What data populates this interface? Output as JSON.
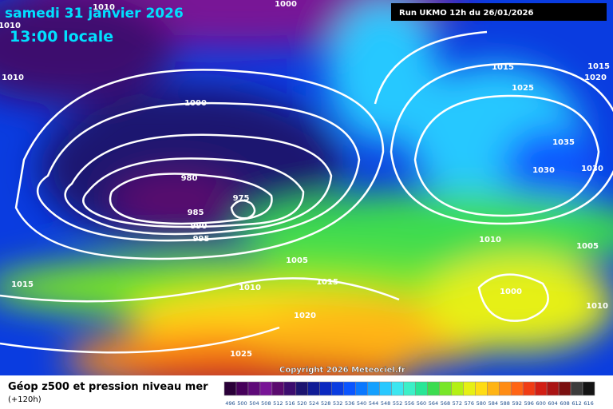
{
  "header": {
    "date": "samedi 31 janvier 2026",
    "time": "13:00 locale",
    "run": "Run UKMO 12h du 26/01/2026"
  },
  "isobar_labels": [
    "1010",
    "1000",
    "1010",
    "1010",
    "1000",
    "980",
    "975",
    "985",
    "990",
    "995",
    "1005",
    "1015",
    "1010",
    "1015",
    "1020",
    "1025",
    "1015",
    "1025",
    "1015",
    "1020",
    "1035",
    "1030",
    "1030",
    "1010",
    "1005",
    "1000",
    "1010"
  ],
  "copyright": "Copyright 2026 Meteociel.fr",
  "footer": {
    "title": "Géop z500 et pression niveau mer",
    "lead": "(+120h)"
  },
  "scale": {
    "labels": [
      "496",
      "500",
      "504",
      "508",
      "512",
      "516",
      "520",
      "524",
      "528",
      "532",
      "536",
      "540",
      "544",
      "548",
      "552",
      "556",
      "560",
      "564",
      "568",
      "572",
      "576",
      "580",
      "584",
      "588",
      "592",
      "596",
      "600",
      "604",
      "608",
      "612",
      "616"
    ],
    "colors": [
      "#2a0038",
      "#46005a",
      "#5e0a78",
      "#781496",
      "#5a0a6e",
      "#3c0c6e",
      "#1c1470",
      "#101c96",
      "#0a28c0",
      "#0a3ce0",
      "#0a55ff",
      "#0a78ff",
      "#14a0ff",
      "#28c8ff",
      "#3ce6f0",
      "#3cf0c8",
      "#28e696",
      "#3cdc50",
      "#78e628",
      "#b4f014",
      "#e6f014",
      "#ffdc14",
      "#ffb414",
      "#ff8c14",
      "#ff6414",
      "#f03c14",
      "#d21e14",
      "#aa1414",
      "#7a1010",
      "#3c3c3c",
      "#141414"
    ]
  }
}
